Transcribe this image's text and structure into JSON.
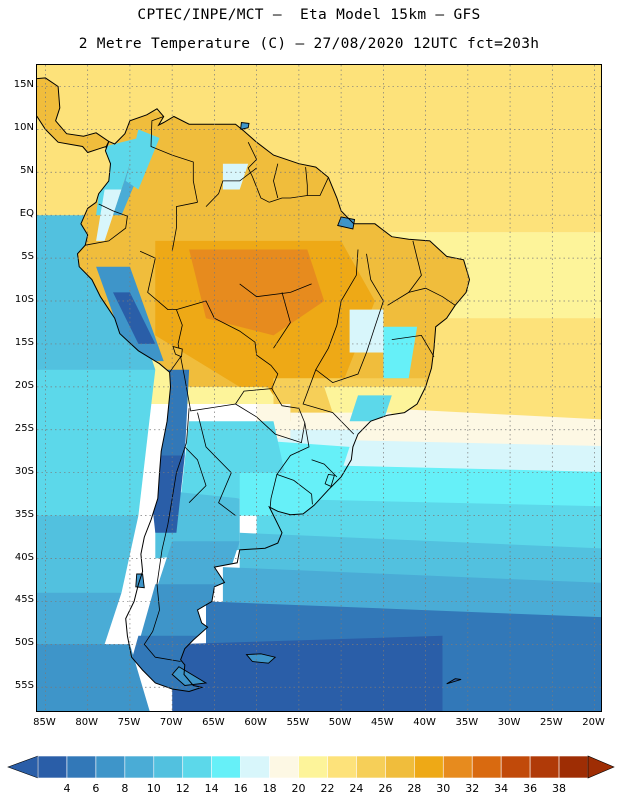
{
  "header": {
    "title_line1": "CPTEC/INPE/MCT –  Eta Model 15km – GFS",
    "title_line2": "2 Metre Temperature (C) – 27/08/2020 12UTC fct=203h"
  },
  "map": {
    "lon_range": [
      -86,
      -19
    ],
    "lat_range": [
      17.5,
      -58
    ],
    "lat_ticks": [
      15,
      10,
      5,
      0,
      -5,
      -10,
      -15,
      -20,
      -25,
      -30,
      -35,
      -40,
      -45,
      -50,
      -55
    ],
    "lat_labels": [
      "15N",
      "10N",
      "5N",
      "EQ",
      "5S",
      "10S",
      "15S",
      "20S",
      "25S",
      "30S",
      "35S",
      "40S",
      "45S",
      "50S",
      "55S"
    ],
    "lon_ticks": [
      -85,
      -80,
      -75,
      -70,
      -65,
      -60,
      -55,
      -50,
      -45,
      -40,
      -35,
      -30,
      -25,
      -20
    ],
    "lon_labels": [
      "85W",
      "80W",
      "75W",
      "70W",
      "65W",
      "60W",
      "55W",
      "50W",
      "45W",
      "40W",
      "35W",
      "30W",
      "25W",
      "20W"
    ],
    "grid": true
  },
  "legend": {
    "levels": [
      "4",
      "6",
      "8",
      "10",
      "12",
      "14",
      "16",
      "18",
      "20",
      "22",
      "24",
      "26",
      "28",
      "30",
      "32",
      "34",
      "36",
      "38"
    ],
    "colors": [
      "#2a5ea8",
      "#3278b8",
      "#3e95c9",
      "#4aacd6",
      "#52c1df",
      "#5cd8ea",
      "#66f0f8",
      "#d8f6fb",
      "#fdf8e4",
      "#fdf49a",
      "#fde27a",
      "#f6cf58",
      "#f0bd3c",
      "#eea916",
      "#e78b1e",
      "#d96a10",
      "#c14a0a",
      "#b03a08",
      "#9e2d04"
    ],
    "low_arrow_color": "#2a5ea8",
    "high_arrow_color": "#9e2d04"
  }
}
